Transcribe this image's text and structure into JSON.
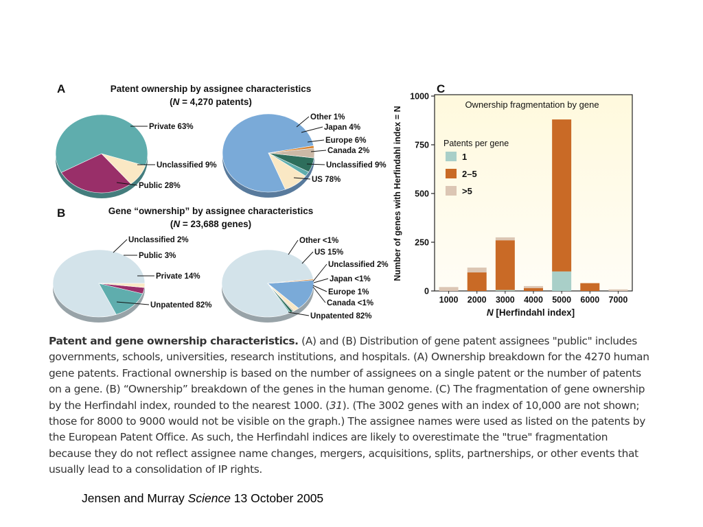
{
  "chart_data": [
    {
      "type": "pie",
      "panel": "A",
      "title": "Patent ownership by assignee characteristics",
      "subtitle": "(N = 4,270 patents)",
      "slices": [
        {
          "label": "Private 63%",
          "value": 63,
          "color": "#5fadad"
        },
        {
          "label": "Public 28%",
          "value": 28,
          "color": "#992f69"
        },
        {
          "label": "Unclassified 9%",
          "value": 9,
          "color": "#fae8c4"
        }
      ]
    },
    {
      "type": "pie",
      "panel": "A",
      "slices": [
        {
          "label": "US 78%",
          "value": 78,
          "color": "#7aaad8"
        },
        {
          "label": "Unclassified 9%",
          "value": 9,
          "color": "#fae8c4"
        },
        {
          "label": "Canada 2%",
          "value": 2,
          "color": "#5fadad"
        },
        {
          "label": "Europe 6%",
          "value": 6,
          "color": "#2e6e5c"
        },
        {
          "label": "Japan 4%",
          "value": 4,
          "color": "#cbb9a6"
        },
        {
          "label": "Other 1%",
          "value": 1,
          "color": "#d9822b"
        }
      ]
    },
    {
      "type": "pie",
      "panel": "B",
      "title": "Gene “ownership” by assignee characteristics",
      "subtitle": "(N = 23,688 genes)",
      "slices": [
        {
          "label": "Unpatented 82%",
          "value": 82,
          "color": "#d3e3ea"
        },
        {
          "label": "Private 14%",
          "value": 14,
          "color": "#5fadad"
        },
        {
          "label": "Public 3%",
          "value": 3,
          "color": "#992f69"
        },
        {
          "label": "Unclassified 2%",
          "value": 2,
          "color": "#fae8c4"
        }
      ]
    },
    {
      "type": "pie",
      "panel": "B",
      "slices": [
        {
          "label": "Unpatented 82%",
          "value": 82,
          "color": "#d3e3ea"
        },
        {
          "label": "Canada <1%",
          "value": 0.5,
          "color": "#5fadad"
        },
        {
          "label": "Europe 1%",
          "value": 1,
          "color": "#2e6e5c"
        },
        {
          "label": "Japan <1%",
          "value": 0.5,
          "color": "#cbb9a6"
        },
        {
          "label": "Unclassified 2%",
          "value": 2,
          "color": "#fae8c4"
        },
        {
          "label": "US 15%",
          "value": 15,
          "color": "#7aaad8"
        },
        {
          "label": "Other <1%",
          "value": 0.5,
          "color": "#d9822b"
        }
      ]
    },
    {
      "type": "bar",
      "stacked": true,
      "panel": "C",
      "title": "Ownership fragmentation by gene",
      "xlabel": "N [Herfindahl index]",
      "ylabel": "Number of genes with Herfindahl index = N",
      "categories": [
        "1000",
        "2000",
        "3000",
        "4000",
        "5000",
        "6000",
        "7000"
      ],
      "ylim": [
        0,
        1000
      ],
      "yticks": [
        0,
        250,
        500,
        750,
        1000
      ],
      "legend_title": "Patents per gene",
      "series": [
        {
          "name": "1",
          "color": "#a9cfc8",
          "values": [
            0,
            0,
            5,
            0,
            100,
            0,
            0
          ]
        },
        {
          "name": "2–5",
          "color": "#c96a26",
          "values": [
            0,
            95,
            255,
            15,
            780,
            40,
            0
          ]
        },
        {
          "name": ">5",
          "color": "#dcc6b4",
          "values": [
            20,
            25,
            15,
            10,
            0,
            0,
            8
          ]
        }
      ]
    }
  ],
  "figure": {
    "panel_a_letter": "A",
    "panel_b_letter": "B",
    "panel_c_letter": "C",
    "n_symbol": "N",
    "panel_a_n": " = 4,270 patents)",
    "panel_b_n": " = 23,688 genes)",
    "xlabel_rest": " [Herfindahl index]"
  },
  "caption": {
    "title": "Patent and gene ownership characteristics.",
    "text_1": " (A) and (B) Distribution of gene patent assignees \"public\" includes governments, schools, universities, research institutions, and hospitals. (A) Ownership breakdown for the 4270 human gene patents. Fractional ownership is based on the number of assignees on a single patent or the number of patents on a gene. (B) “Ownership” breakdown of the genes in the human genome. (C) The fragmentation of gene ownership by the Herfindahl index, rounded to the nearest 1000. (",
    "ref": "31",
    "text_2": "). (The 3002 genes with an index of 10,000 are not shown; those for 8000 to 9000 would not be visible on the graph.) The assignee names were used as listed on the patents by the European Patent Office. As such, the Herfindahl indices are likely to overestimate the \"true\" fragmentation because they do not reflect assignee name changes, mergers, acquisitions, splits, partnerships, or other events that usually lead to a consolidation of IP rights."
  },
  "credit": {
    "authors": "Jensen and Murray ",
    "journal": "Science",
    "date": " 13 October 2005"
  }
}
